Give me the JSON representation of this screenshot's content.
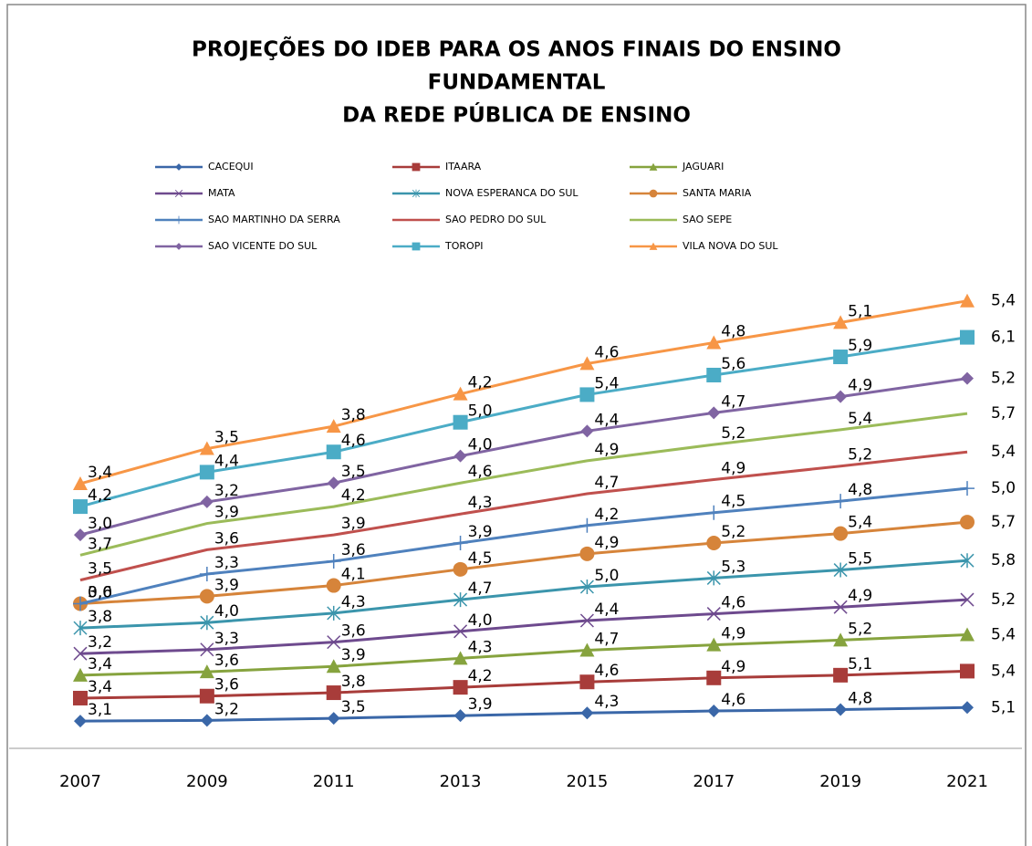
{
  "chart_data": {
    "type": "line",
    "stacked": true,
    "title": [
      "PROJEÇÕES DO IDEB PARA OS ANOS FINAIS DO ENSINO",
      "FUNDAMENTAL",
      "DA REDE PÚBLICA DE ENSINO"
    ],
    "categories": [
      "2007",
      "2009",
      "2011",
      "2013",
      "2015",
      "2017",
      "2019",
      "2021"
    ],
    "series": [
      {
        "name": "CACEQUI",
        "color": "#3a67a8",
        "marker": "diamond",
        "values": [
          3.1,
          3.2,
          3.5,
          3.9,
          4.3,
          4.6,
          4.8,
          5.1
        ],
        "value_labels": [
          "3,1",
          "3,2",
          "3,5",
          "3,9",
          "4,3",
          "4,6",
          "4,8",
          "5,1"
        ]
      },
      {
        "name": "ITAARA",
        "color": "#a83c3a",
        "marker": "square",
        "values": [
          3.4,
          3.6,
          3.8,
          4.2,
          4.6,
          4.9,
          5.1,
          5.4
        ],
        "value_labels": [
          "3,4",
          "3,6",
          "3,8",
          "4,2",
          "4,6",
          "4,9",
          "5,1",
          "5,4"
        ]
      },
      {
        "name": "JAGUARI",
        "color": "#86a33e",
        "marker": "triangle",
        "values": [
          3.4,
          3.6,
          3.9,
          4.3,
          4.7,
          4.9,
          5.2,
          5.4
        ],
        "value_labels": [
          "3,4",
          "3,6",
          "3,9",
          "4,3",
          "4,7",
          "4,9",
          "5,2",
          "5,4"
        ]
      },
      {
        "name": "MATA",
        "color": "#6e4a8e",
        "marker": "x",
        "values": [
          3.2,
          3.3,
          3.6,
          4.0,
          4.4,
          4.6,
          4.9,
          5.2
        ],
        "value_labels": [
          "3,2",
          "3,3",
          "3,6",
          "4,0",
          "4,4",
          "4,6",
          "4,9",
          "5,2"
        ]
      },
      {
        "name": "NOVA ESPERANCA DO SUL",
        "color": "#3b95ac",
        "marker": "star",
        "values": [
          3.8,
          4.0,
          4.3,
          4.7,
          5.0,
          5.3,
          5.5,
          5.8
        ],
        "value_labels": [
          "3,8",
          "4,0",
          "4,3",
          "4,7",
          "5,0",
          "5,3",
          "5,5",
          "5,8"
        ]
      },
      {
        "name": "SANTA MARIA",
        "color": "#d6843a",
        "marker": "circle",
        "values": [
          3.6,
          3.9,
          4.1,
          4.5,
          4.9,
          5.2,
          5.4,
          5.7
        ],
        "value_labels": [
          "3,6",
          "3,9",
          "4,1",
          "4,5",
          "4,9",
          "5,2",
          "5,4",
          "5,7"
        ]
      },
      {
        "name": "SAO MARTINHO DA SERRA",
        "color": "#4f81bd",
        "marker": "plus",
        "values": [
          0,
          3.3,
          3.6,
          3.9,
          4.2,
          4.5,
          4.8,
          5.0
        ],
        "value_labels": [
          "0,0",
          "3,3",
          "3,6",
          "3,9",
          "4,2",
          "4,5",
          "4,8",
          "5,0"
        ]
      },
      {
        "name": "SAO PEDRO DO SUL",
        "color": "#c0504d",
        "marker": "none",
        "values": [
          3.5,
          3.6,
          3.9,
          4.3,
          4.7,
          4.9,
          5.2,
          5.4
        ],
        "value_labels": [
          "3,5",
          "3,6",
          "3,9",
          "4,3",
          "4,7",
          "4,9",
          "5,2",
          "5,4"
        ]
      },
      {
        "name": "SAO SEPE",
        "color": "#9bbb59",
        "marker": "none",
        "values": [
          3.7,
          3.9,
          4.2,
          4.6,
          4.9,
          5.2,
          5.4,
          5.7
        ],
        "value_labels": [
          "3,7",
          "3,9",
          "4,2",
          "4,6",
          "4,9",
          "5,2",
          "5,4",
          "5,7"
        ]
      },
      {
        "name": "SAO VICENTE DO SUL",
        "color": "#8064a2",
        "marker": "diamond",
        "values": [
          3.0,
          3.2,
          3.5,
          4.0,
          4.4,
          4.7,
          4.9,
          5.2
        ],
        "value_labels": [
          "3,0",
          "3,2",
          "3,5",
          "4,0",
          "4,4",
          "4,7",
          "4,9",
          "5,2"
        ]
      },
      {
        "name": "TOROPI",
        "color": "#4bacc6",
        "marker": "square",
        "values": [
          4.2,
          4.4,
          4.6,
          5.0,
          5.4,
          5.6,
          5.9,
          6.1
        ],
        "value_labels": [
          "4,2",
          "4,4",
          "4,6",
          "5,0",
          "5,4",
          "5,6",
          "5,9",
          "6,1"
        ]
      },
      {
        "name": "VILA NOVA DO SUL",
        "color": "#f79646",
        "marker": "triangle",
        "values": [
          3.4,
          3.5,
          3.8,
          4.2,
          4.6,
          4.8,
          5.1,
          5.4
        ],
        "value_labels": [
          "3,4",
          "3,5",
          "3,8",
          "4,2",
          "4,6",
          "4,8",
          "5,1",
          "5,4"
        ]
      }
    ]
  }
}
